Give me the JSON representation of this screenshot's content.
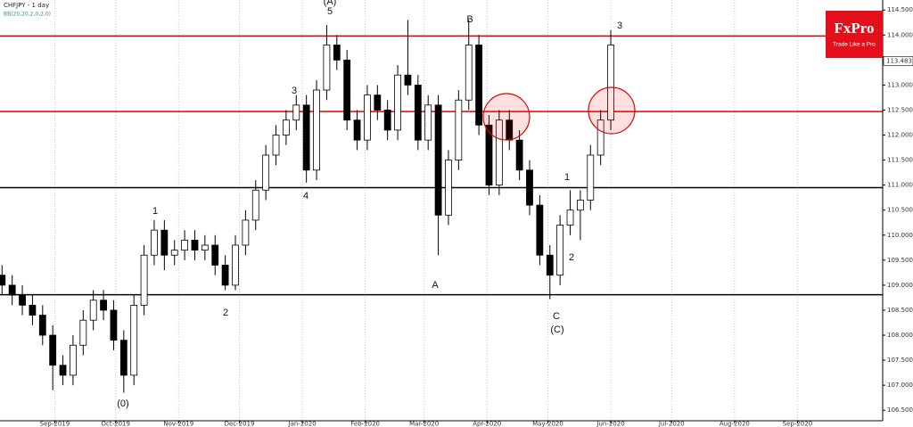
{
  "chart_data": {
    "type": "candlestick",
    "title": "CHFJPY - 1 day",
    "subtitle": "BB(20,20,2,0,2,0)",
    "logo": {
      "name": "FxPro",
      "tagline": "Trade Like a Pro"
    },
    "x": [
      5,
      10,
      15,
      20,
      25,
      30,
      35,
      40,
      45,
      50,
      55,
      60,
      65,
      70,
      75,
      80,
      85,
      90,
      95,
      100,
      105,
      110,
      115,
      120,
      125,
      130,
      135,
      140,
      145,
      150,
      155,
      160,
      165,
      170,
      175,
      180,
      185,
      190,
      195,
      200,
      205,
      210,
      215,
      220,
      225,
      230,
      235,
      240,
      245,
      250,
      255,
      260,
      265,
      270,
      275,
      280,
      285,
      290,
      295,
      300,
      305
    ],
    "open": [
      109.2,
      109.0,
      108.8,
      108.6,
      108.4,
      108.0,
      107.4,
      107.2,
      107.8,
      108.3,
      108.7,
      108.5,
      107.9,
      107.2,
      108.6,
      109.6,
      110.1,
      109.6,
      109.7,
      109.9,
      109.7,
      109.8,
      109.4,
      109.0,
      109.8,
      110.3,
      110.9,
      111.6,
      112.0,
      112.3,
      112.6,
      111.3,
      112.9,
      113.8,
      113.5,
      112.3,
      111.9,
      112.8,
      112.5,
      112.1,
      113.2,
      113.0,
      111.9,
      112.6,
      110.4,
      111.5,
      112.7,
      113.8,
      112.2,
      111.0,
      112.3,
      111.9,
      111.3,
      110.6,
      109.6,
      109.2,
      110.2,
      110.5,
      110.7,
      111.6,
      112.3
    ],
    "high": [
      109.4,
      109.2,
      109.0,
      108.8,
      108.6,
      108.2,
      107.6,
      108.0,
      108.5,
      108.9,
      108.9,
      108.7,
      108.1,
      108.8,
      109.8,
      110.3,
      110.3,
      109.9,
      110.1,
      110.1,
      110.0,
      110.0,
      109.6,
      110.0,
      110.5,
      111.1,
      111.8,
      112.2,
      112.5,
      112.8,
      112.8,
      113.1,
      114.2,
      114.0,
      113.7,
      112.5,
      113.0,
      113.0,
      112.7,
      113.4,
      114.3,
      113.2,
      112.8,
      112.8,
      111.7,
      112.9,
      114.3,
      114.0,
      112.4,
      112.5,
      112.5,
      112.1,
      111.5,
      110.8,
      109.8,
      110.4,
      110.9,
      110.9,
      111.8,
      112.5,
      114.1
    ],
    "low": [
      108.8,
      108.6,
      108.4,
      108.2,
      107.8,
      106.9,
      107.0,
      107.0,
      107.6,
      108.1,
      108.3,
      107.7,
      106.85,
      107.0,
      108.4,
      109.4,
      109.3,
      109.4,
      109.5,
      109.5,
      109.5,
      109.2,
      108.9,
      108.9,
      109.6,
      110.1,
      110.7,
      111.4,
      111.8,
      112.1,
      111.05,
      111.1,
      112.7,
      113.3,
      112.1,
      111.7,
      111.7,
      112.3,
      111.9,
      111.9,
      112.8,
      111.7,
      111.7,
      109.6,
      110.2,
      111.3,
      112.5,
      112.0,
      110.8,
      110.8,
      111.7,
      111.1,
      110.4,
      109.4,
      108.72,
      109.0,
      110.0,
      109.9,
      110.5,
      111.4,
      112.1
    ],
    "close": [
      109.0,
      108.8,
      108.6,
      108.4,
      108.0,
      107.4,
      107.2,
      107.8,
      108.3,
      108.7,
      108.5,
      107.9,
      107.2,
      108.6,
      109.6,
      110.1,
      109.6,
      109.7,
      109.9,
      109.7,
      109.8,
      109.4,
      109.0,
      109.8,
      110.3,
      110.9,
      111.6,
      112.0,
      112.3,
      112.6,
      111.3,
      112.9,
      113.8,
      113.5,
      112.3,
      111.9,
      112.8,
      112.5,
      112.1,
      113.2,
      113.0,
      111.9,
      112.6,
      110.4,
      111.5,
      112.7,
      113.8,
      112.2,
      111.0,
      112.3,
      111.9,
      111.3,
      110.6,
      109.6,
      109.2,
      110.2,
      110.5,
      110.7,
      111.6,
      112.3,
      113.8
    ],
    "up_color": "#ffffff",
    "down_color": "#000000",
    "last_price": 113.483,
    "levels": [
      {
        "value": 113.98,
        "color": "#e00000"
      },
      {
        "value": 112.47,
        "color": "#e00000"
      },
      {
        "value": 110.95,
        "color": "#000000"
      },
      {
        "value": 108.81,
        "color": "#000000"
      }
    ],
    "annotations": [
      "(0)",
      "1",
      "2",
      "3",
      "4",
      "5",
      "(A)",
      "A",
      "B",
      "C",
      "(C)",
      "1",
      "2",
      "3"
    ],
    "xlim": [
      4,
      439
    ],
    "ylim": [
      106.29,
      114.7
    ],
    "xticks": [
      {
        "value": 31,
        "label": "Sep-2019"
      },
      {
        "value": 61,
        "label": "Oct-2019"
      },
      {
        "value": 92,
        "label": "Nov-2019"
      },
      {
        "value": 122,
        "label": "Dec-2019"
      },
      {
        "value": 153,
        "label": "Jan-2020"
      },
      {
        "value": 184,
        "label": "Feb-2020"
      },
      {
        "value": 213,
        "label": "Mar-2020"
      },
      {
        "value": 244,
        "label": "Apr-2020"
      },
      {
        "value": 274,
        "label": "May-2020"
      },
      {
        "value": 305,
        "label": "Jun-2020"
      },
      {
        "value": 335,
        "label": "Jul-2020"
      },
      {
        "value": 366,
        "label": "Aug-2020"
      },
      {
        "value": 397,
        "label": "Sep-2020"
      }
    ],
    "yticks": [
      {
        "value": 106.5,
        "label": "106.500"
      },
      {
        "value": 107,
        "label": "107.000"
      },
      {
        "value": 107.5,
        "label": "107.500"
      },
      {
        "value": 108,
        "label": "108.000"
      },
      {
        "value": 108.5,
        "label": "108.500"
      },
      {
        "value": 109,
        "label": "109.000"
      },
      {
        "value": 109.5,
        "label": "109.500"
      },
      {
        "value": 110,
        "label": "110.000"
      },
      {
        "value": 110.5,
        "label": "110.500"
      },
      {
        "value": 111,
        "label": "111.000"
      },
      {
        "value": 111.5,
        "label": "111.500"
      },
      {
        "value": 112,
        "label": "112.000"
      },
      {
        "value": 112.5,
        "label": "112.500"
      },
      {
        "value": 113,
        "label": "113.000"
      },
      {
        "value": 113.5,
        "label": "113.500"
      },
      {
        "value": 114,
        "label": "114.000"
      },
      {
        "value": 114.5,
        "label": "114.500"
      }
    ],
    "grid": "x"
  }
}
